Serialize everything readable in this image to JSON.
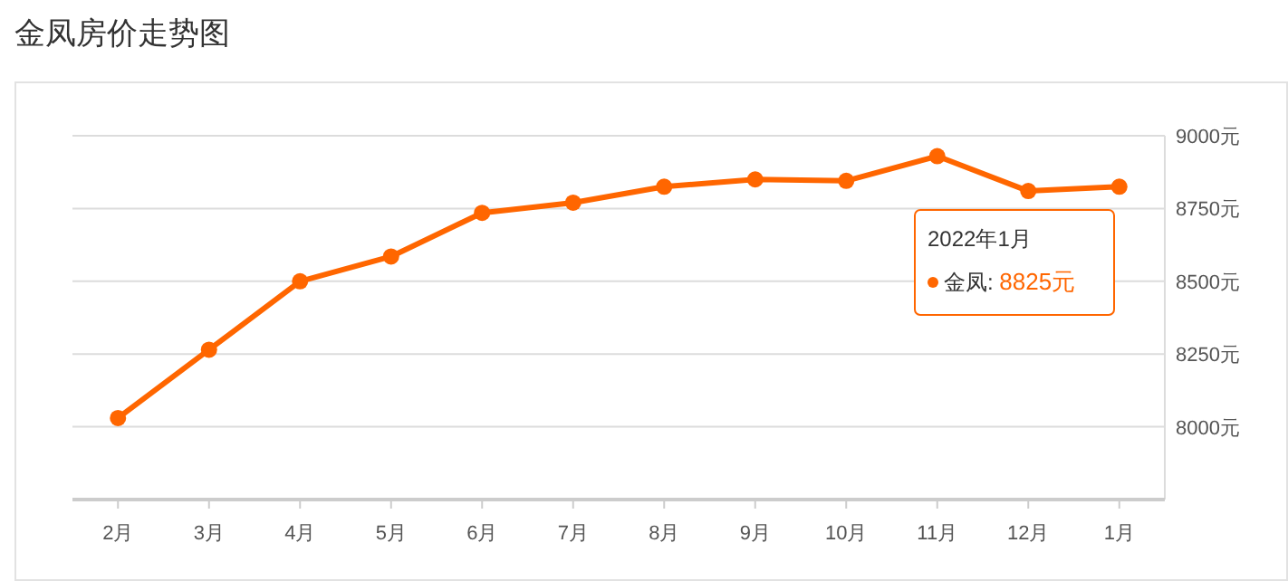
{
  "chart_data": {
    "type": "line",
    "title": "金凤房价走势图",
    "categories": [
      "2月",
      "3月",
      "4月",
      "5月",
      "6月",
      "7月",
      "8月",
      "9月",
      "10月",
      "11月",
      "12月",
      "1月"
    ],
    "series": [
      {
        "color": "#ff6600",
        "values": [
          8030,
          8265,
          8500,
          8585,
          8735,
          8770,
          8825,
          8850,
          8845,
          8930,
          8810,
          8825
        ]
      }
    ],
    "ylim": [
      7750,
      9000
    ],
    "yticks": [
      {
        "value": 7750,
        "label": null
      },
      {
        "value": 8000,
        "label": "8000元"
      },
      {
        "value": 8250,
        "label": "8250元"
      },
      {
        "value": 8500,
        "label": "8500元"
      },
      {
        "value": 8750,
        "label": "8750元"
      },
      {
        "value": 9000,
        "label": "9000元"
      }
    ],
    "grid": "y",
    "marker": "circle",
    "line_style": "solid",
    "annotations": [
      "2022年1月",
      "金凤: 8825元"
    ]
  }
}
